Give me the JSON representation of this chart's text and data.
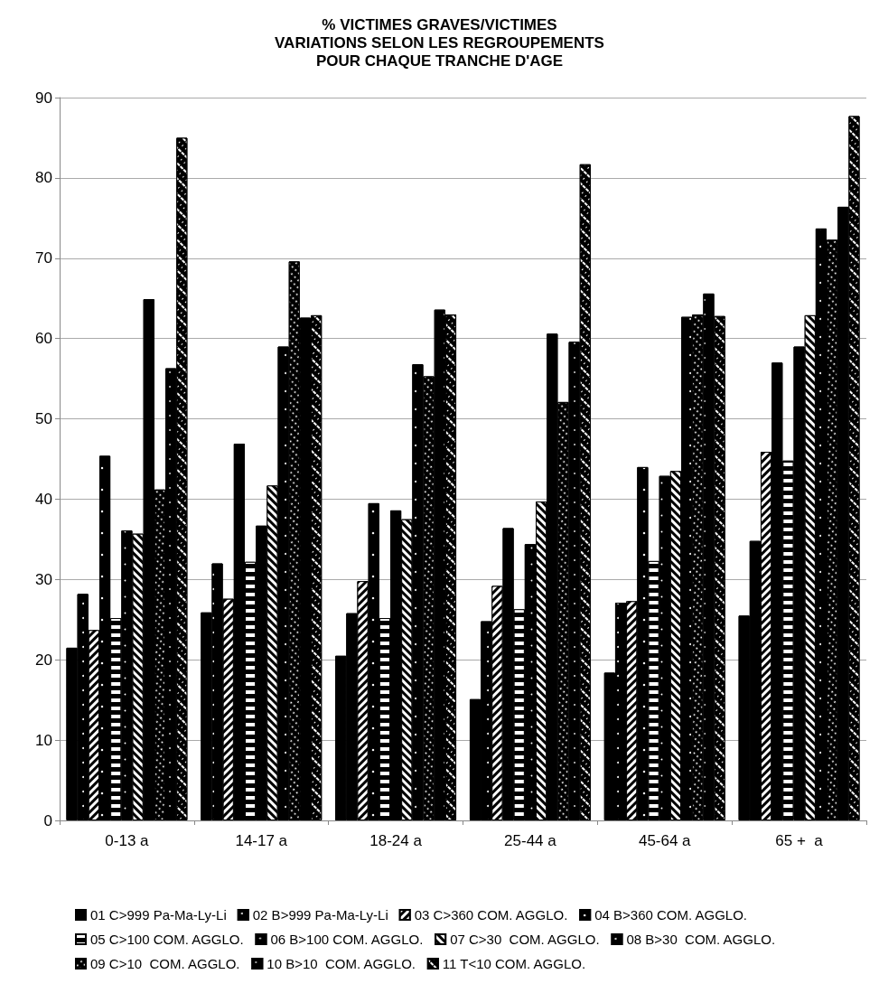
{
  "chart_data": {
    "type": "bar",
    "title": "% VICTIMES GRAVES/VICTIMES\nVARIATIONS SELON LES REGROUPEMENTS\nPOUR CHAQUE TRANCHE D'AGE",
    "categories": [
      "0-13 a",
      "14-17 a",
      "18-24 a",
      "25-44 a",
      "45-64 a",
      "65 +  a"
    ],
    "ylim": [
      0,
      90
    ],
    "yticks": [
      0,
      10,
      20,
      30,
      40,
      50,
      60,
      70,
      80,
      90
    ],
    "grid": "y",
    "legend": "bottom",
    "series": [
      {
        "name": "01 C>999 Pa-Ma-Ly-Li",
        "color": "#000000",
        "values": [
          21.5,
          25.9,
          20.5,
          15.1,
          18.4,
          25.5
        ]
      },
      {
        "name": "02 B>999 Pa-Ma-Ly-Li",
        "color": "#000000",
        "values": [
          28.2,
          32.0,
          25.8,
          24.8,
          27.1,
          34.8
        ]
      },
      {
        "name": "03 C>360 COM. AGGLO.",
        "color": "#000000",
        "values": [
          23.7,
          27.6,
          29.8,
          29.2,
          27.3,
          45.9
        ]
      },
      {
        "name": "04 B>360 COM. AGGLO.",
        "color": "#000000",
        "values": [
          45.4,
          46.9,
          39.5,
          36.4,
          44.0,
          57.0
        ]
      },
      {
        "name": "05 C>100 COM. AGGLO.",
        "color": "#000000",
        "values": [
          25.2,
          32.2,
          25.2,
          26.3,
          32.3,
          44.8
        ]
      },
      {
        "name": "06 B>100 COM. AGGLO.",
        "color": "#000000",
        "values": [
          36.1,
          36.7,
          38.6,
          34.4,
          42.9,
          59.0
        ]
      },
      {
        "name": "07 C>30  COM. AGGLO.",
        "color": "#000000",
        "values": [
          35.7,
          41.7,
          37.5,
          39.7,
          43.5,
          62.9
        ]
      },
      {
        "name": "08 B>30  COM. AGGLO.",
        "color": "#000000",
        "values": [
          64.9,
          59.0,
          56.8,
          60.6,
          62.7,
          73.7
        ]
      },
      {
        "name": "09 C>10  COM. AGGLO.",
        "color": "#000000",
        "values": [
          41.2,
          69.6,
          55.3,
          52.1,
          63.0,
          72.3
        ]
      },
      {
        "name": "10 B>10  COM. AGGLO.",
        "color": "#000000",
        "values": [
          56.3,
          62.6,
          63.6,
          59.6,
          65.6,
          76.4
        ]
      },
      {
        "name": "11 T<10 COM. AGGLO.",
        "color": "#000000",
        "values": [
          85.0,
          62.9,
          63.0,
          81.7,
          62.8,
          87.7
        ]
      }
    ]
  }
}
